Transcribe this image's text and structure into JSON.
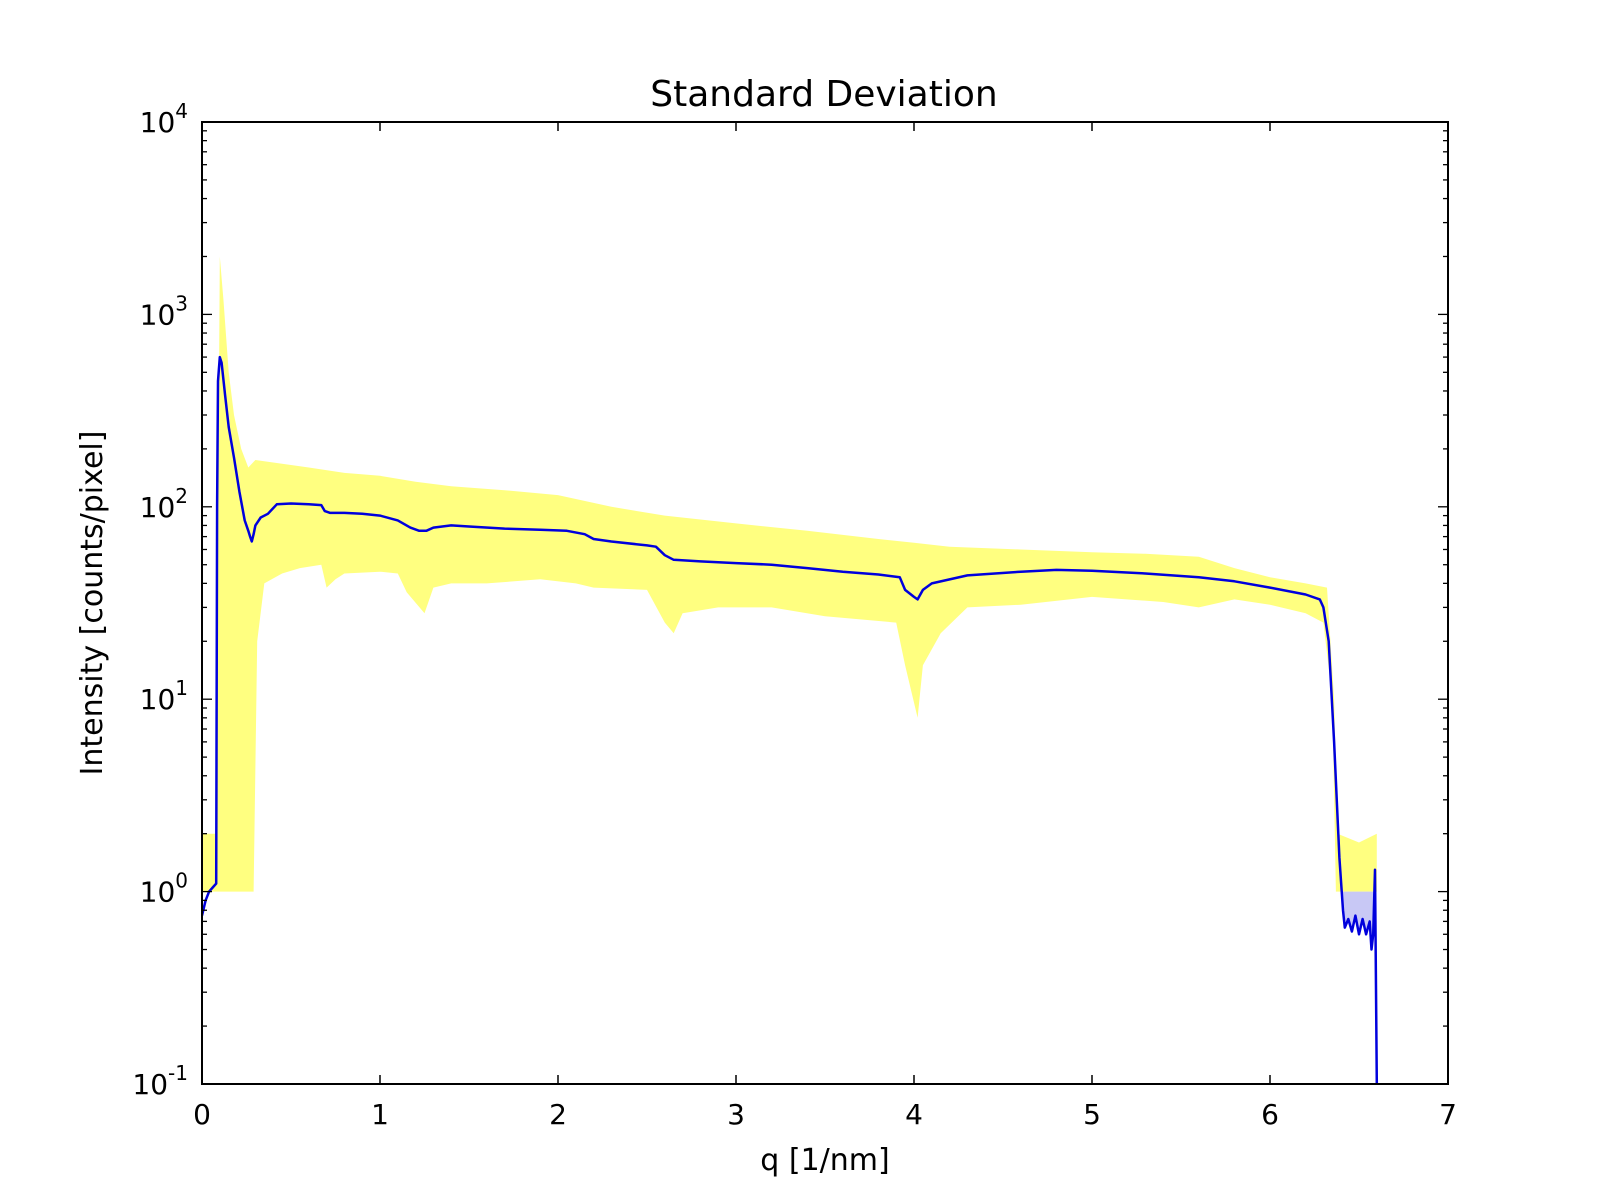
{
  "chart_data": {
    "type": "line",
    "title": "Standard Deviation",
    "xlabel": "q [1/nm]",
    "ylabel": "Intensity [counts/pixel]",
    "xlim": [
      0,
      7
    ],
    "ylim": [
      0.1,
      10000
    ],
    "yscale": "log",
    "grid": false,
    "x_ticks": [
      0,
      1,
      2,
      3,
      4,
      5,
      6,
      7
    ],
    "x_tick_labels": [
      "0",
      "1",
      "2",
      "3",
      "4",
      "5",
      "6",
      "7"
    ],
    "y_ticks": [
      0.1,
      1,
      10,
      100,
      1000,
      10000
    ],
    "y_tick_exponents": [
      "-1",
      "0",
      "1",
      "2",
      "3",
      "4"
    ],
    "y_tick_base": "10",
    "line_color": "#0000dd",
    "band_color": "#ffff80",
    "band_low_color": "#c8c8f5",
    "series": [
      {
        "kind": "line",
        "points": [
          [
            0.0,
            0.75
          ],
          [
            0.02,
            0.9
          ],
          [
            0.04,
            1.0
          ],
          [
            0.06,
            1.05
          ],
          [
            0.08,
            1.1
          ],
          [
            0.085,
            100
          ],
          [
            0.09,
            450
          ],
          [
            0.1,
            600
          ],
          [
            0.11,
            560
          ],
          [
            0.13,
            380
          ],
          [
            0.15,
            260
          ],
          [
            0.18,
            180
          ],
          [
            0.21,
            120
          ],
          [
            0.24,
            85
          ],
          [
            0.26,
            75
          ],
          [
            0.27,
            70
          ],
          [
            0.28,
            66
          ],
          [
            0.29,
            72
          ],
          [
            0.3,
            80
          ],
          [
            0.33,
            88
          ],
          [
            0.37,
            92
          ],
          [
            0.42,
            103
          ],
          [
            0.5,
            104
          ],
          [
            0.6,
            103
          ],
          [
            0.67,
            102
          ],
          [
            0.69,
            95
          ],
          [
            0.72,
            93
          ],
          [
            0.8,
            93
          ],
          [
            0.9,
            92
          ],
          [
            1.0,
            90
          ],
          [
            1.1,
            85
          ],
          [
            1.17,
            78
          ],
          [
            1.22,
            75
          ],
          [
            1.26,
            75
          ],
          [
            1.3,
            78
          ],
          [
            1.4,
            80
          ],
          [
            1.5,
            79
          ],
          [
            1.7,
            77
          ],
          [
            1.9,
            76
          ],
          [
            2.05,
            75
          ],
          [
            2.15,
            72
          ],
          [
            2.2,
            68
          ],
          [
            2.3,
            66
          ],
          [
            2.5,
            63
          ],
          [
            2.55,
            62
          ],
          [
            2.6,
            56
          ],
          [
            2.65,
            53
          ],
          [
            2.8,
            52
          ],
          [
            3.0,
            51
          ],
          [
            3.2,
            50
          ],
          [
            3.4,
            48
          ],
          [
            3.6,
            46
          ],
          [
            3.8,
            44.5
          ],
          [
            3.92,
            43
          ],
          [
            3.95,
            37
          ],
          [
            4.0,
            34
          ],
          [
            4.02,
            33
          ],
          [
            4.05,
            37
          ],
          [
            4.1,
            40
          ],
          [
            4.3,
            44
          ],
          [
            4.6,
            46
          ],
          [
            4.8,
            47
          ],
          [
            5.0,
            46.5
          ],
          [
            5.3,
            45
          ],
          [
            5.6,
            43
          ],
          [
            5.8,
            41
          ],
          [
            6.0,
            38
          ],
          [
            6.2,
            35
          ],
          [
            6.28,
            33
          ],
          [
            6.3,
            30
          ],
          [
            6.33,
            20
          ],
          [
            6.36,
            6
          ],
          [
            6.39,
            1.5
          ],
          [
            6.41,
            0.8
          ],
          [
            6.42,
            0.65
          ],
          [
            6.44,
            0.72
          ],
          [
            6.46,
            0.62
          ],
          [
            6.48,
            0.75
          ],
          [
            6.5,
            0.6
          ],
          [
            6.52,
            0.72
          ],
          [
            6.54,
            0.6
          ],
          [
            6.56,
            0.7
          ],
          [
            6.57,
            0.5
          ],
          [
            6.58,
            0.6
          ],
          [
            6.59,
            1.3
          ],
          [
            6.6,
            0.1
          ]
        ]
      },
      {
        "kind": "band_upper",
        "points": [
          [
            0.0,
            2.0
          ],
          [
            0.05,
            2.0
          ],
          [
            0.08,
            2.0
          ],
          [
            0.1,
            2000
          ],
          [
            0.12,
            1200
          ],
          [
            0.15,
            500
          ],
          [
            0.18,
            300
          ],
          [
            0.22,
            200
          ],
          [
            0.26,
            160
          ],
          [
            0.3,
            175
          ],
          [
            0.4,
            170
          ],
          [
            0.6,
            160
          ],
          [
            0.8,
            150
          ],
          [
            1.0,
            145
          ],
          [
            1.2,
            135
          ],
          [
            1.4,
            128
          ],
          [
            1.7,
            122
          ],
          [
            2.0,
            115
          ],
          [
            2.3,
            100
          ],
          [
            2.6,
            90
          ],
          [
            3.0,
            82
          ],
          [
            3.4,
            75
          ],
          [
            3.8,
            68
          ],
          [
            4.0,
            65
          ],
          [
            4.2,
            62
          ],
          [
            4.6,
            60
          ],
          [
            5.0,
            58
          ],
          [
            5.3,
            57
          ],
          [
            5.6,
            55
          ],
          [
            5.8,
            48
          ],
          [
            6.0,
            43
          ],
          [
            6.2,
            40
          ],
          [
            6.32,
            38
          ],
          [
            6.36,
            10
          ],
          [
            6.38,
            2.0
          ],
          [
            6.5,
            1.8
          ],
          [
            6.6,
            2.0
          ]
        ]
      },
      {
        "kind": "band_lower",
        "points": [
          [
            0.0,
            1.0
          ],
          [
            0.29,
            1.0
          ],
          [
            0.31,
            20
          ],
          [
            0.35,
            40
          ],
          [
            0.45,
            45
          ],
          [
            0.55,
            48
          ],
          [
            0.67,
            50
          ],
          [
            0.7,
            38
          ],
          [
            0.75,
            42
          ],
          [
            0.8,
            45
          ],
          [
            1.0,
            46
          ],
          [
            1.1,
            45
          ],
          [
            1.15,
            36
          ],
          [
            1.25,
            28
          ],
          [
            1.3,
            38
          ],
          [
            1.4,
            40
          ],
          [
            1.6,
            40
          ],
          [
            1.9,
            42
          ],
          [
            2.1,
            40
          ],
          [
            2.2,
            38
          ],
          [
            2.5,
            37
          ],
          [
            2.6,
            25
          ],
          [
            2.65,
            22
          ],
          [
            2.7,
            28
          ],
          [
            2.9,
            30
          ],
          [
            3.2,
            30
          ],
          [
            3.5,
            27
          ],
          [
            3.9,
            25
          ],
          [
            3.95,
            15
          ],
          [
            4.02,
            8
          ],
          [
            4.05,
            15
          ],
          [
            4.15,
            22
          ],
          [
            4.3,
            30
          ],
          [
            4.6,
            31
          ],
          [
            5.0,
            34
          ],
          [
            5.4,
            32
          ],
          [
            5.6,
            30
          ],
          [
            5.8,
            33
          ],
          [
            6.0,
            31
          ],
          [
            6.2,
            28
          ],
          [
            6.3,
            25
          ],
          [
            6.35,
            10
          ],
          [
            6.37,
            1.0
          ],
          [
            6.6,
            1.0
          ]
        ]
      }
    ]
  }
}
